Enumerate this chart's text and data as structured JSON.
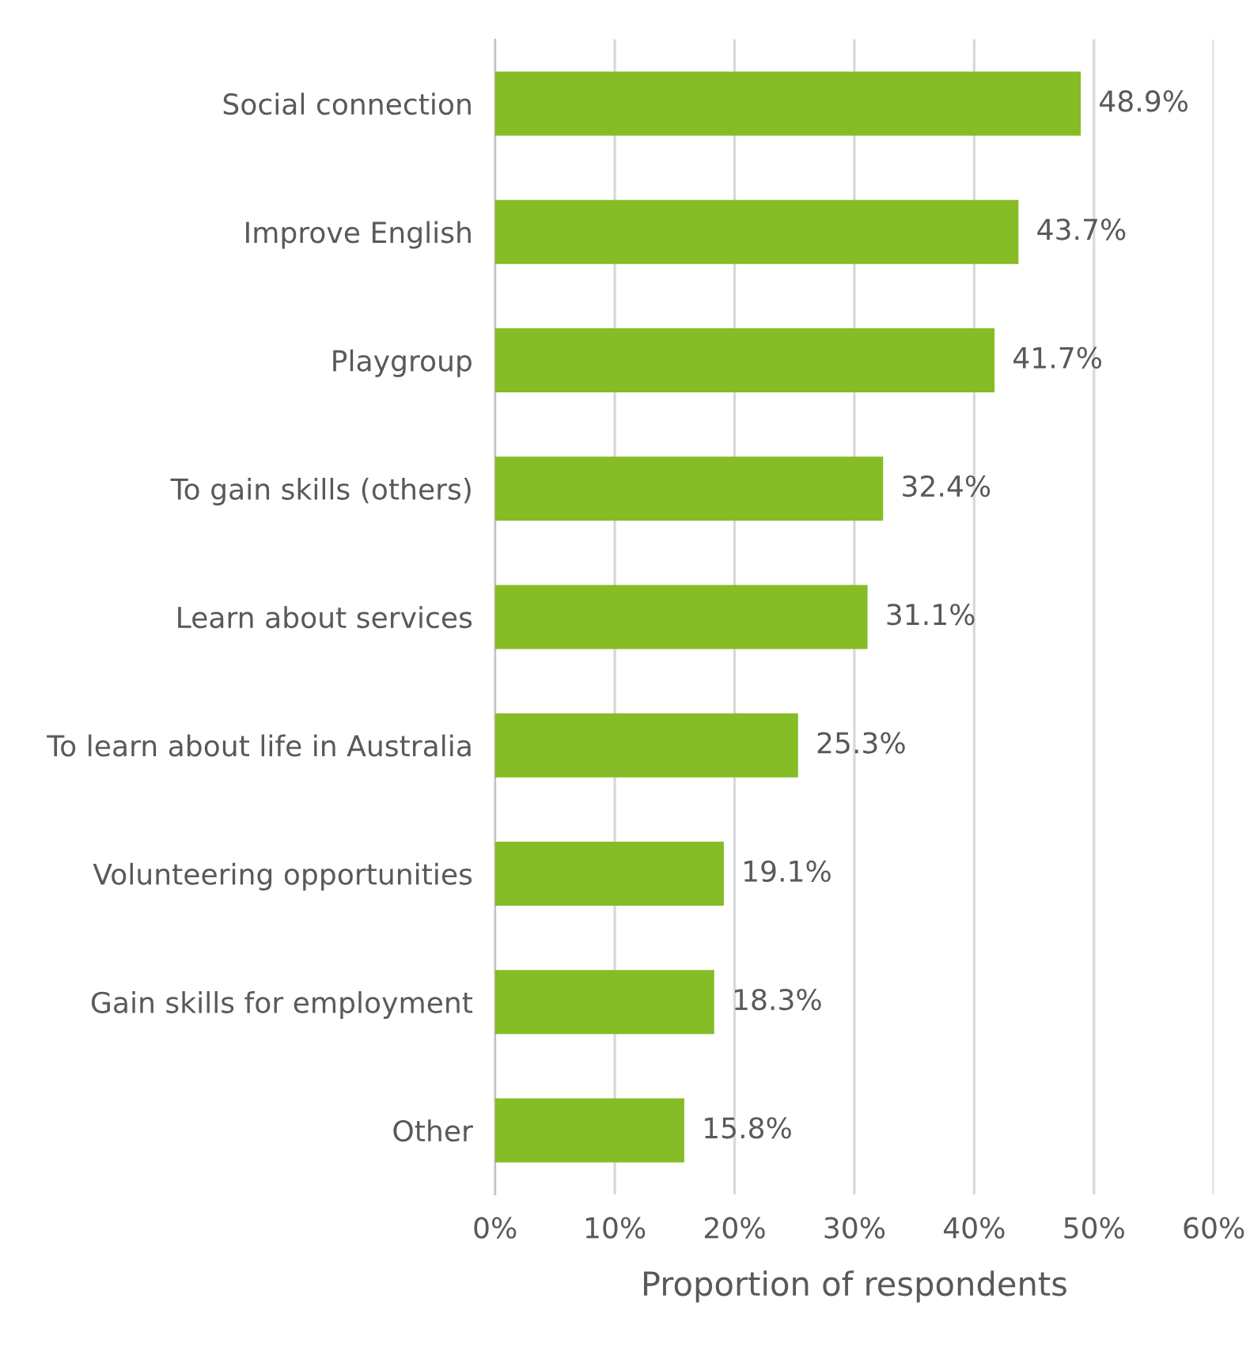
{
  "chart_data": {
    "type": "bar",
    "orientation": "horizontal",
    "categories": [
      "Social connection",
      "Improve English",
      "Playgroup",
      "To gain skills (others)",
      "Learn about services",
      "To learn about life in Australia",
      "Volunteering opportunities",
      "Gain skills for employment",
      "Other"
    ],
    "values": [
      48.9,
      43.7,
      41.7,
      32.4,
      31.1,
      25.3,
      19.1,
      18.3,
      15.8
    ],
    "value_labels": [
      "48.9%",
      "43.7%",
      "41.7%",
      "32.4%",
      "31.1%",
      "25.3%",
      "19.1%",
      "18.3%",
      "15.8%"
    ],
    "color": "#86bc25",
    "xlabel": "Proportion of respondents",
    "xlim": [
      0,
      60
    ],
    "xticks": [
      {
        "value": 0,
        "label": "0%"
      },
      {
        "value": 10,
        "label": "10%"
      },
      {
        "value": 20,
        "label": "20%"
      },
      {
        "value": 30,
        "label": "30%"
      },
      {
        "value": 40,
        "label": "40%"
      },
      {
        "value": 50,
        "label": "50%"
      },
      {
        "value": 60,
        "label": "60%"
      }
    ],
    "grid": "x",
    "legend": false
  }
}
